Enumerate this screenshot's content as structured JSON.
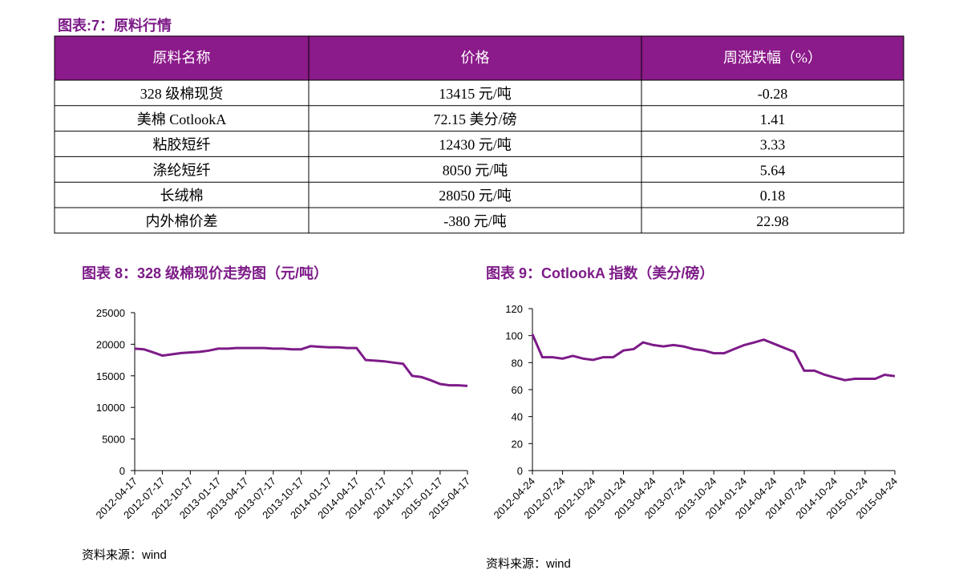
{
  "title": "图表:7：原料行情",
  "table": {
    "header": [
      "原料名称",
      "价格",
      "周涨跌幅（%）"
    ],
    "rows": [
      [
        "328 级棉现货",
        "13415 元/吨",
        -0.28
      ],
      [
        "美棉 CotlookA",
        "72.15 美分/磅",
        1.41
      ],
      [
        "粘胶短纤",
        "12430 元/吨",
        3.33
      ],
      [
        "涤纶短纤",
        "8050 元/吨",
        5.64
      ],
      [
        "长绒棉",
        "28050 元/吨",
        0.18
      ],
      [
        "内外棉价差",
        "-380 元/吨",
        22.98
      ]
    ]
  },
  "chart_data": [
    {
      "type": "line",
      "title": "图表 8：328 级棉现价走势图（元/吨）",
      "source": "资料来源：wind",
      "color": "#7d1b88",
      "x": [
        "2012-04-17",
        "2012-05-17",
        "2012-06-17",
        "2012-07-17",
        "2012-08-17",
        "2012-09-17",
        "2012-10-17",
        "2012-11-17",
        "2012-12-17",
        "2013-01-17",
        "2013-02-17",
        "2013-03-17",
        "2013-04-17",
        "2013-05-17",
        "2013-06-17",
        "2013-07-17",
        "2013-08-17",
        "2013-09-17",
        "2013-10-17",
        "2013-11-17",
        "2013-12-17",
        "2014-01-17",
        "2014-02-17",
        "2014-03-17",
        "2014-04-17",
        "2014-05-17",
        "2014-06-17",
        "2014-07-17",
        "2014-08-17",
        "2014-09-17",
        "2014-10-17",
        "2014-11-17",
        "2014-12-17",
        "2015-01-17",
        "2015-02-17",
        "2015-03-17",
        "2015-04-17"
      ],
      "values": [
        19300,
        19200,
        18700,
        18200,
        18400,
        18600,
        18700,
        18800,
        19000,
        19300,
        19300,
        19400,
        19400,
        19400,
        19400,
        19300,
        19300,
        19200,
        19200,
        19700,
        19600,
        19500,
        19500,
        19400,
        19400,
        17500,
        17400,
        17300,
        17100,
        16900,
        15000,
        14800,
        14300,
        13700,
        13500,
        13500,
        13400
      ],
      "xlim": [
        "2012-04-17",
        "2015-04-17"
      ],
      "xticks": [
        "2012-04-17",
        "2012-07-17",
        "2012-10-17",
        "2013-01-17",
        "2013-04-17",
        "2013-07-17",
        "2013-10-17",
        "2014-01-17",
        "2014-04-17",
        "2014-07-17",
        "2014-10-17",
        "2015-01-17",
        "2015-04-17"
      ],
      "ylim": [
        0,
        25000
      ],
      "yticks": [
        0,
        5000,
        10000,
        15000,
        20000,
        25000
      ]
    },
    {
      "type": "line",
      "title": "图表 9：CotlookA 指数（美分/磅）",
      "source": "资料来源：wind",
      "color": "#7d1b88",
      "x": [
        "2012-04-24",
        "2012-05-24",
        "2012-06-24",
        "2012-07-24",
        "2012-08-24",
        "2012-09-24",
        "2012-10-24",
        "2012-11-24",
        "2012-12-24",
        "2013-01-24",
        "2013-02-24",
        "2013-03-24",
        "2013-04-24",
        "2013-05-24",
        "2013-06-24",
        "2013-07-24",
        "2013-08-24",
        "2013-09-24",
        "2013-10-24",
        "2013-11-24",
        "2013-12-24",
        "2014-01-24",
        "2014-02-24",
        "2014-03-24",
        "2014-04-24",
        "2014-05-24",
        "2014-06-24",
        "2014-07-24",
        "2014-08-24",
        "2014-09-24",
        "2014-10-24",
        "2014-11-24",
        "2014-12-24",
        "2015-01-24",
        "2015-02-24",
        "2015-03-24",
        "2015-04-24"
      ],
      "values": [
        101,
        84,
        84,
        83,
        85,
        83,
        82,
        84,
        84,
        89,
        90,
        95,
        93,
        92,
        93,
        92,
        90,
        89,
        87,
        87,
        90,
        93,
        95,
        97,
        94,
        91,
        88,
        74,
        74,
        71,
        69,
        67,
        68,
        68,
        68,
        71,
        70
      ],
      "xlim": [
        "2012-04-24",
        "2015-04-24"
      ],
      "xticks": [
        "2012-04-24",
        "2012-07-24",
        "2012-10-24",
        "2013-01-24",
        "2013-04-24",
        "2013-07-24",
        "2013-10-24",
        "2014-01-24",
        "2014-04-24",
        "2014-07-24",
        "2014-10-24",
        "2015-01-24",
        "2015-04-24"
      ],
      "ylim": [
        0,
        120
      ],
      "yticks": [
        0,
        20,
        40,
        60,
        80,
        100,
        120
      ]
    }
  ]
}
